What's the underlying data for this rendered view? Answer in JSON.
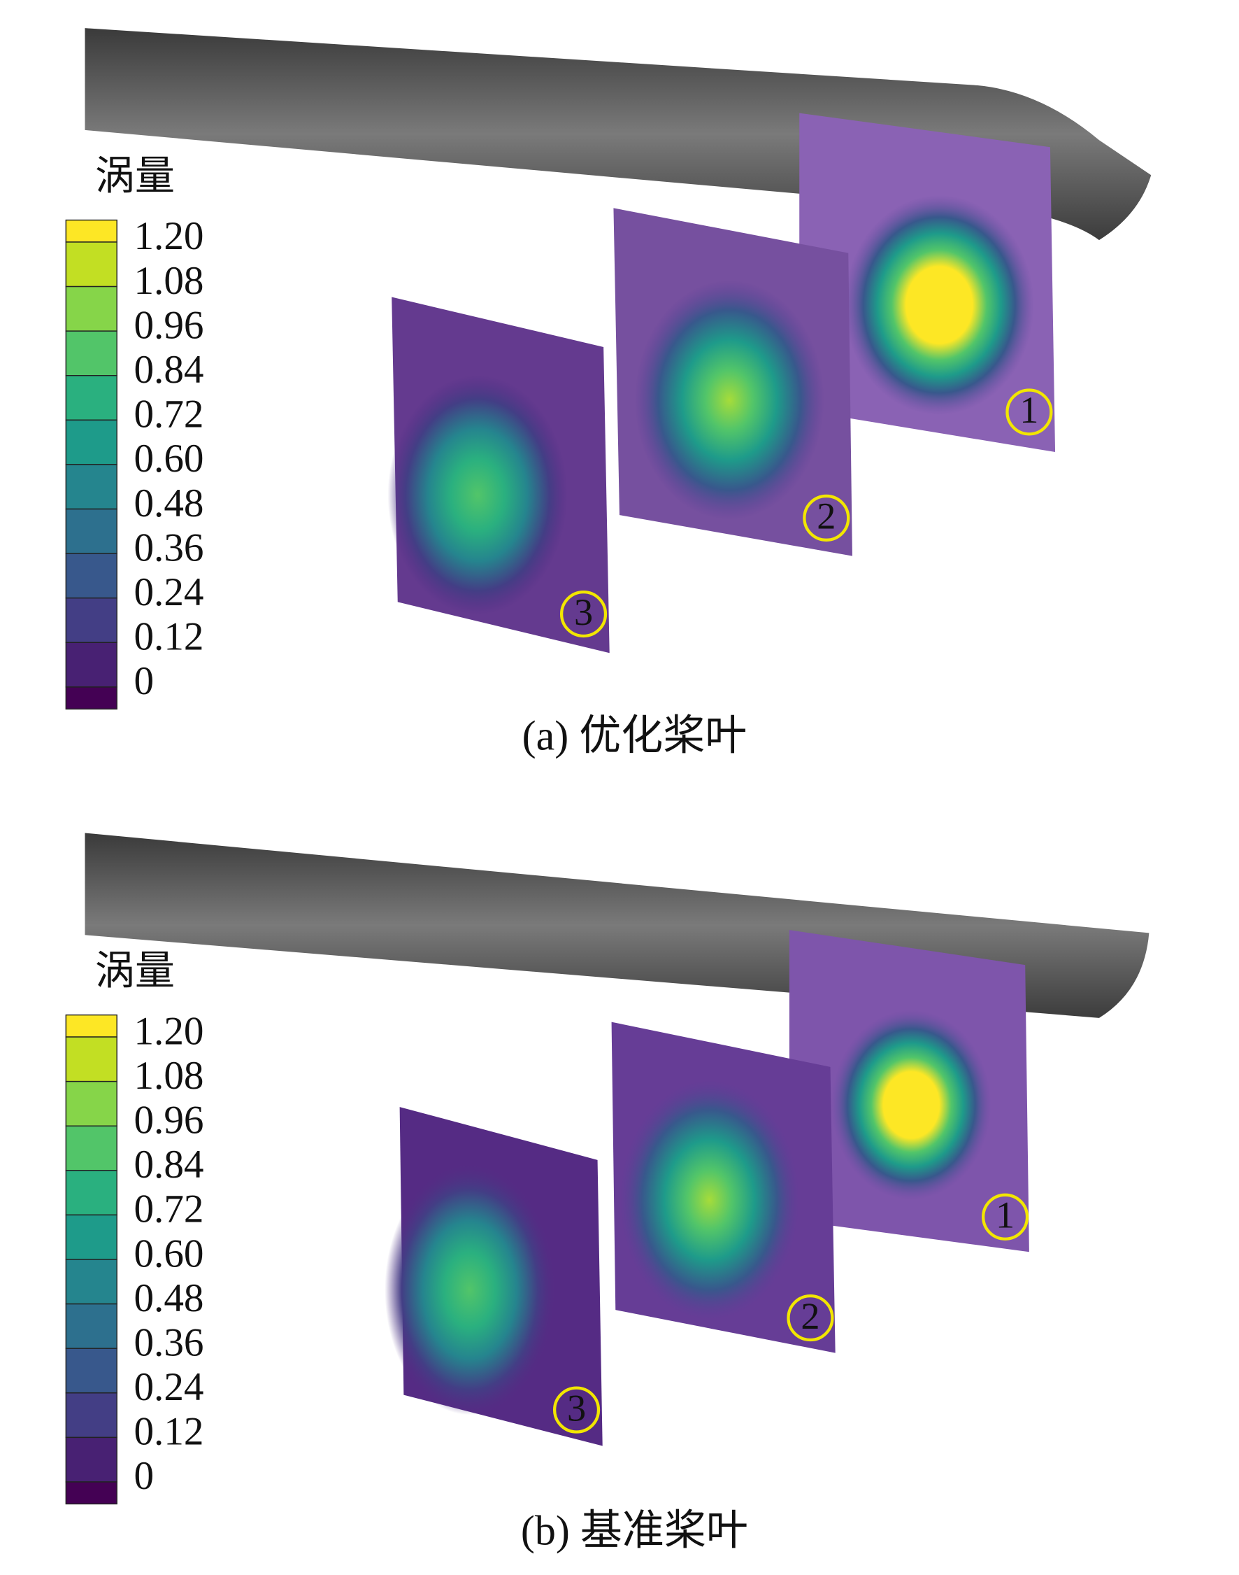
{
  "panels": [
    {
      "colorbar": {
        "title": "涡量",
        "labels": [
          "1.20",
          "1.08",
          "0.96",
          "0.84",
          "0.72",
          "0.60",
          "0.48",
          "0.36",
          "0.24",
          "0.12",
          "0"
        ],
        "colors": [
          "#fde725",
          "#c2df23",
          "#86d549",
          "#52c569",
          "#2ab07f",
          "#1e9b8a",
          "#25858e",
          "#2d708e",
          "#38588c",
          "#433e85",
          "#482173",
          "#440154"
        ]
      },
      "plane_labels": [
        "1",
        "2",
        "3"
      ],
      "caption": "(a) 优化桨叶"
    },
    {
      "colorbar": {
        "title": "涡量",
        "labels": [
          "1.20",
          "1.08",
          "0.96",
          "0.84",
          "0.72",
          "0.60",
          "0.48",
          "0.36",
          "0.24",
          "0.12",
          "0"
        ],
        "colors": [
          "#fde725",
          "#c2df23",
          "#86d549",
          "#52c569",
          "#2ab07f",
          "#1e9b8a",
          "#25858e",
          "#2d708e",
          "#38588c",
          "#433e85",
          "#482173",
          "#440154"
        ]
      },
      "plane_labels": [
        "1",
        "2",
        "3"
      ],
      "caption": "(b) 基准桨叶"
    }
  ]
}
